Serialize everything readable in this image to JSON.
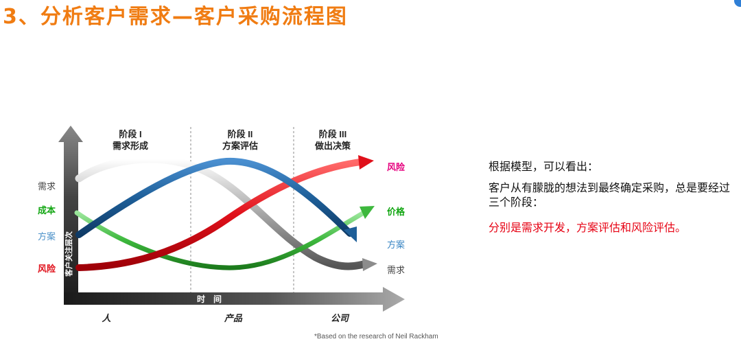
{
  "title": "3、分析客户需求—客户采购流程图",
  "diagram": {
    "phases": [
      {
        "title": "阶段 I",
        "subtitle": "需求形成"
      },
      {
        "title": "阶段 II",
        "subtitle": "方案评估"
      },
      {
        "title": "阶段 III",
        "subtitle": "做出决策"
      }
    ],
    "y_axis_label": "客户关注层次",
    "x_axis_label": "时　间",
    "left_labels": [
      {
        "text": "需求",
        "color": "#444444"
      },
      {
        "text": "成本",
        "color": "#12A612"
      },
      {
        "text": "方案",
        "color": "#4A90C8"
      },
      {
        "text": "风险",
        "color": "#E0101A"
      }
    ],
    "right_labels": [
      {
        "text": "风险",
        "color": "#E6007E"
      },
      {
        "text": "价格",
        "color": "#12A612"
      },
      {
        "text": "方案",
        "color": "#3A86C4"
      },
      {
        "text": "需求",
        "color": "#444444"
      }
    ],
    "bottom_labels": [
      "人",
      "产品",
      "公司"
    ],
    "footnote": "*Based on the research of Neil Rackham",
    "colors": {
      "risk": "#E0101A",
      "price": "#3DB83D",
      "solution": "#1E5F99",
      "need": "#9A9A9A"
    }
  },
  "notes": {
    "line1": "根据模型，可以看出：",
    "line2": "客户从有朦胧的想法到最终确定采购，总是要经过三个阶段：",
    "line3": "分别是需求开发，方案评估和风险评估。"
  }
}
